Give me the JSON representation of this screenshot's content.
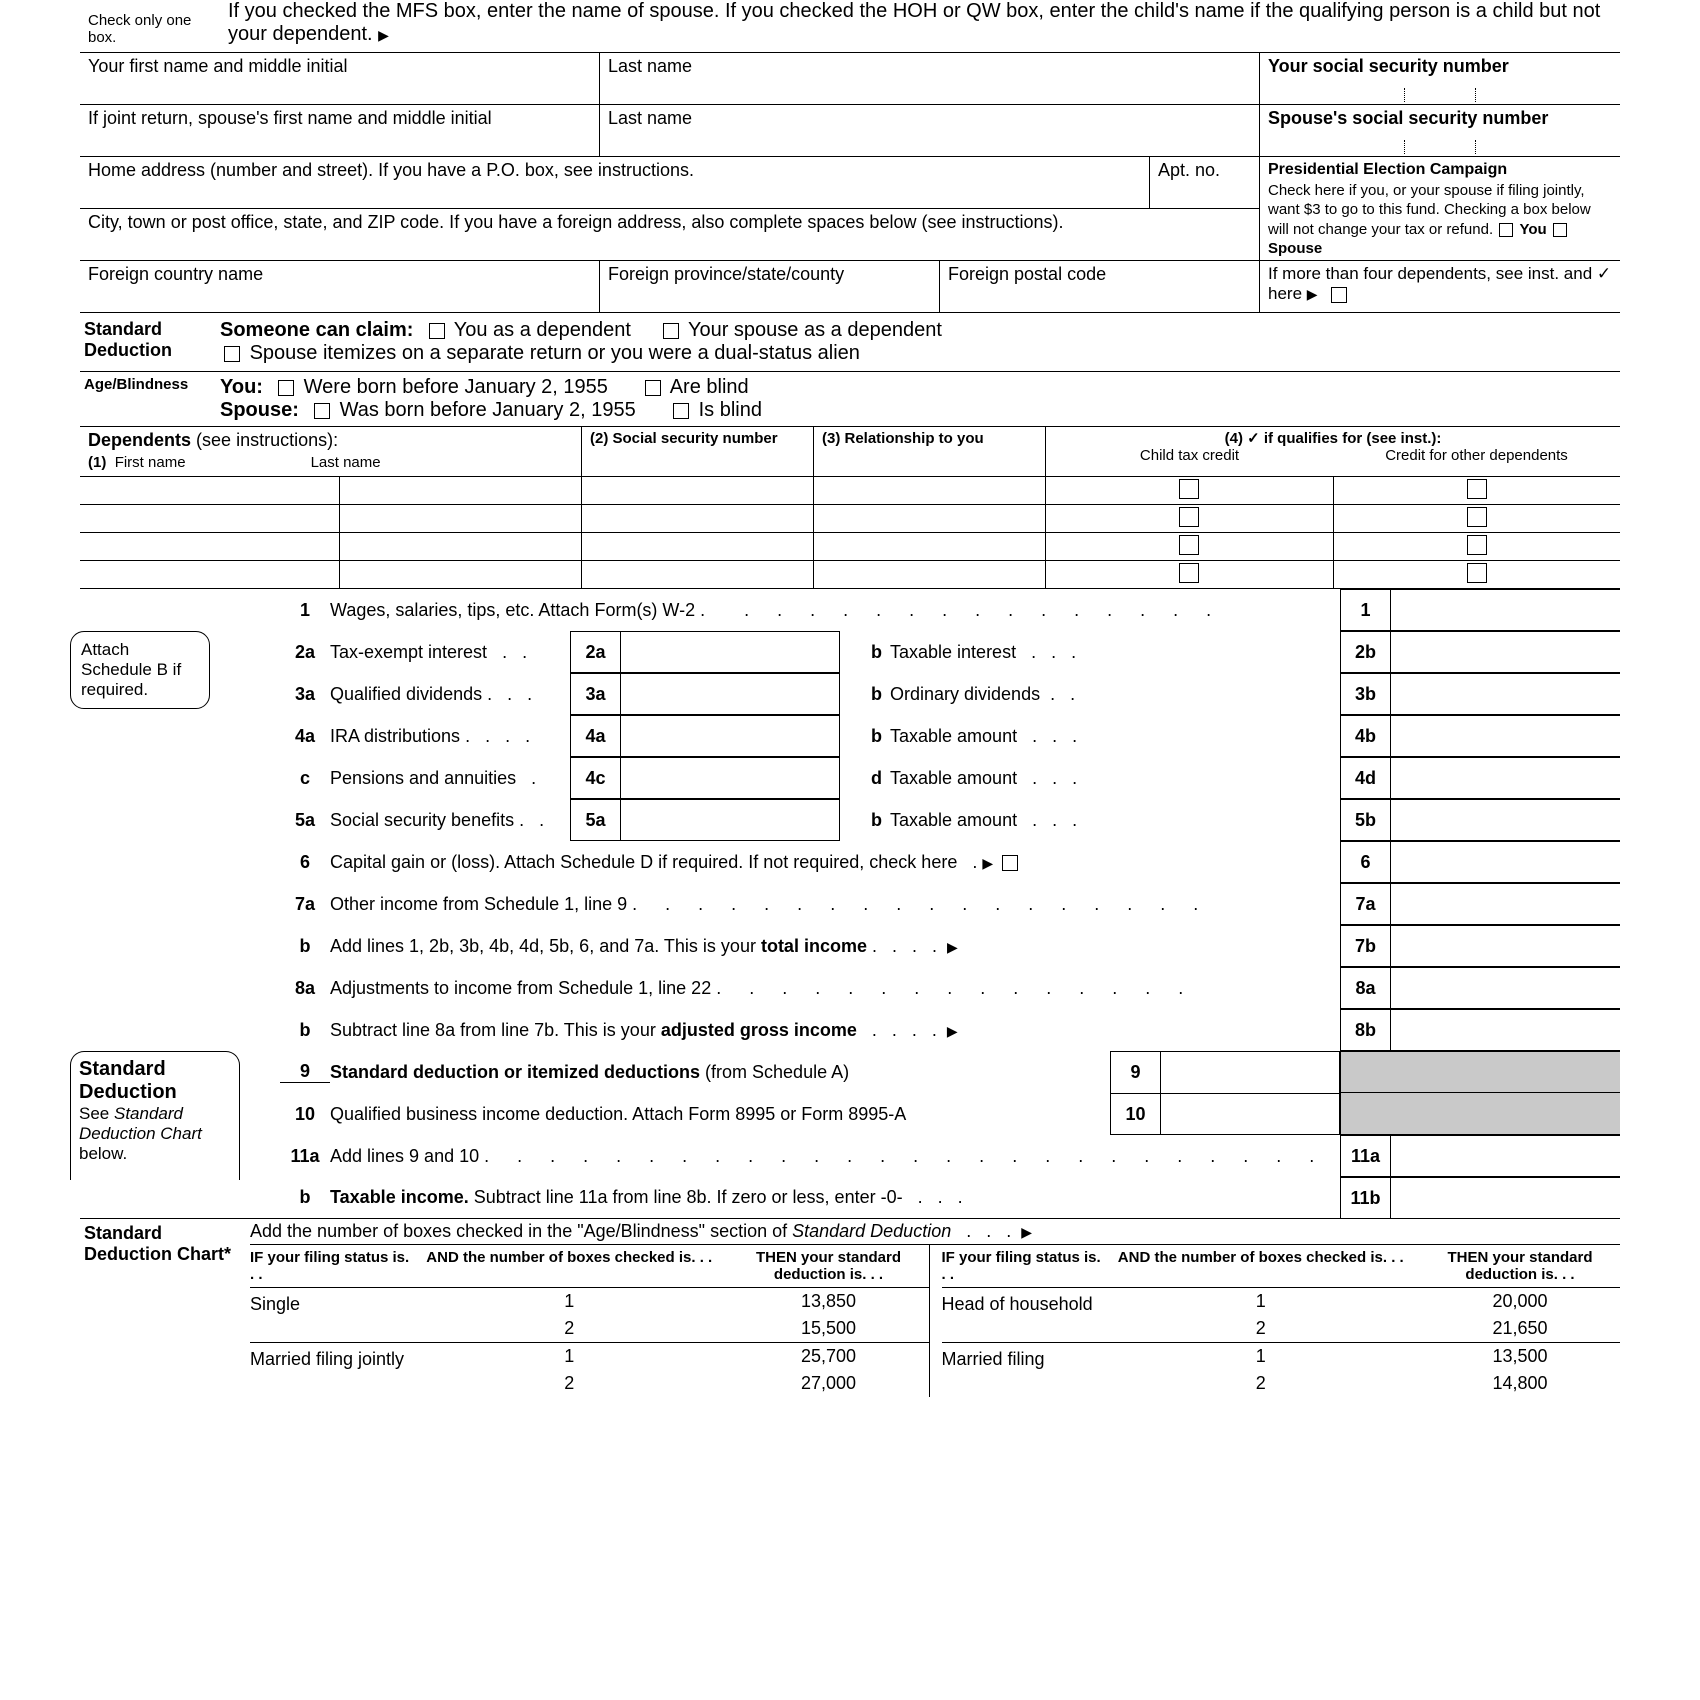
{
  "filing_status_note1": "Check only one box.",
  "filing_status_note2": "If you checked the MFS box, enter the name of spouse. If you checked the HOH or QW box, enter the child's name if the qualifying person is a child but not your dependent.",
  "name_section": {
    "first": "Your first name and middle initial",
    "last": "Last name",
    "ssn": "Your social security number",
    "spouse_first": "If joint return, spouse's first name and middle initial",
    "spouse_last": "Last name",
    "spouse_ssn": "Spouse's social security number",
    "address": "Home address (number and street). If you have a P.O. box, see instructions.",
    "apt": "Apt. no.",
    "city": "City, town or post office, state, and ZIP code. If you have a foreign address, also complete spaces below (see instructions).",
    "foreign_country": "Foreign country name",
    "foreign_province": "Foreign province/state/county",
    "foreign_postal": "Foreign postal code"
  },
  "pec": {
    "title": "Presidential Election Campaign",
    "text1": "Check here if you, or your spouse if filing jointly, want $3 to go to this fund. Checking a box below will not change your tax or refund.",
    "you": "You",
    "spouse": "Spouse"
  },
  "dep_overflow": "If more than four dependents, see inst. and  ✓ here",
  "std_ded": {
    "title": "Standard Deduction",
    "someone": "Someone can claim:",
    "you_dep": "You as a dependent",
    "spouse_dep": "Your spouse as a dependent",
    "itemize": "Spouse itemizes on a separate return or you were a dual-status alien"
  },
  "age": {
    "label": "Age/Blindness",
    "you": "You:",
    "you_born": "Were born before January 2, 1955",
    "you_blind": "Are blind",
    "spouse": "Spouse:",
    "spouse_born": "Was born before January 2, 1955",
    "spouse_blind": "Is blind"
  },
  "dependents": {
    "title": "Dependents",
    "see": "(see instructions):",
    "c1a": "(1)",
    "c1b": "First name",
    "c1c": "Last name",
    "c2": "(2) Social security number",
    "c3": "(3) Relationship to you",
    "c4": "(4)  ✓ if qualifies for (see inst.):",
    "c4a": "Child tax credit",
    "c4b": "Credit for other dependents"
  },
  "attach_b": "Attach Schedule B if required.",
  "lines": {
    "l1": "Wages, salaries, tips, etc. Attach Form(s) W-2",
    "l2a": "Tax-exempt interest",
    "l2b": "Taxable interest",
    "l3a": "Qualified dividends",
    "l3b": "Ordinary dividends",
    "l4a": "IRA distributions",
    "l4b": "Taxable amount",
    "l4c": "Pensions and annuities",
    "l4d": "Taxable amount",
    "l5a": "Social security benefits",
    "l5b": "Taxable amount",
    "l6": "Capital gain or (loss). Attach Schedule D if required. If not required, check here",
    "l7a": "Other income from Schedule 1, line 9",
    "l7b_pre": "Add lines 1, 2b, 3b, 4b, 4d, 5b, 6, and 7a. This is your ",
    "l7b_bold": "total income",
    "l8a": "Adjustments to income from Schedule 1, line 22",
    "l8b_pre": "Subtract line 8a from line 7b. This is your ",
    "l8b_bold": "adjusted gross income",
    "l9_bold": "Standard deduction or itemized deductions ",
    "l9_post": "(from Schedule A)",
    "l10": "Qualified business income deduction. Attach Form 8995 or Form 8995-A",
    "l11a": "Add lines 9 and 10",
    "l11b_bold": "Taxable income. ",
    "l11b_post": "Subtract line 11a from line 8b. If zero or less, enter -0-"
  },
  "std_ded_box": {
    "title": "Standard Deduction",
    "see": "See ",
    "see2": "Standard Deduction Chart",
    "see3": " below."
  },
  "chart": {
    "title": "Standard Deduction Chart*",
    "intro_pre": "Add the number of boxes checked in the \"Age/Blindness\" section of ",
    "intro_it": "Standard Deduction",
    "h1": "IF your filing status is. . .",
    "h2": "AND the number of boxes checked is. . .",
    "h3": "THEN your standard deduction is. . .",
    "rows": [
      {
        "status": "Single",
        "n": [
          "1",
          "2"
        ],
        "v": [
          "13,850",
          "15,500"
        ]
      },
      {
        "status": "Married filing jointly",
        "n": [
          "1",
          "2"
        ],
        "v": [
          "25,700",
          "27,000"
        ]
      },
      {
        "status": "Head of household",
        "n": [
          "1",
          "2"
        ],
        "v": [
          "20,000",
          "21,650"
        ]
      },
      {
        "status": "Married filing",
        "n": [
          "1",
          "2"
        ],
        "v": [
          "13,500",
          "14,800"
        ]
      }
    ]
  }
}
